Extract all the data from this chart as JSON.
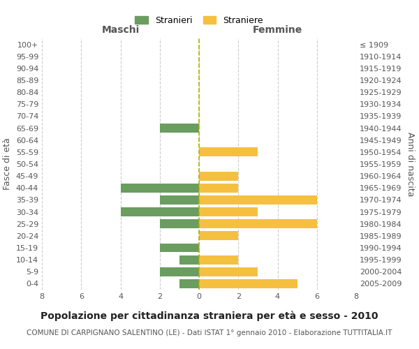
{
  "age_groups": [
    "100+",
    "95-99",
    "90-94",
    "85-89",
    "80-84",
    "75-79",
    "70-74",
    "65-69",
    "60-64",
    "55-59",
    "50-54",
    "45-49",
    "40-44",
    "35-39",
    "30-34",
    "25-29",
    "20-24",
    "15-19",
    "10-14",
    "5-9",
    "0-4"
  ],
  "birth_years": [
    "≤ 1909",
    "1910-1914",
    "1915-1919",
    "1920-1924",
    "1925-1929",
    "1930-1934",
    "1935-1939",
    "1940-1944",
    "1945-1949",
    "1950-1954",
    "1955-1959",
    "1960-1964",
    "1965-1969",
    "1970-1974",
    "1975-1979",
    "1980-1984",
    "1985-1989",
    "1990-1994",
    "1995-1999",
    "2000-2004",
    "2005-2009"
  ],
  "males": [
    0,
    0,
    0,
    0,
    0,
    0,
    0,
    2,
    0,
    0,
    0,
    0,
    4,
    2,
    4,
    2,
    0,
    2,
    1,
    2,
    1
  ],
  "females": [
    0,
    0,
    0,
    0,
    0,
    0,
    0,
    0,
    0,
    3,
    0,
    2,
    2,
    6,
    3,
    6,
    2,
    0,
    2,
    3,
    5
  ],
  "male_color": "#6a9d5f",
  "female_color": "#f5c040",
  "background_color": "#ffffff",
  "grid_color": "#cccccc",
  "title": "Popolazione per cittadinanza straniera per età e sesso - 2010",
  "subtitle": "COMUNE DI CARPIGNANO SALENTINO (LE) - Dati ISTAT 1° gennaio 2010 - Elaborazione TUTTITALIA.IT",
  "ylabel_left": "Fasce di età",
  "ylabel_right": "Anni di nascita",
  "xlabel_left": "Maschi",
  "xlabel_right": "Femmine",
  "legend_stranieri": "Stranieri",
  "legend_straniere": "Straniere",
  "xlim": 8,
  "title_fontsize": 10,
  "subtitle_fontsize": 7.5,
  "label_fontsize": 9,
  "tick_fontsize": 8
}
